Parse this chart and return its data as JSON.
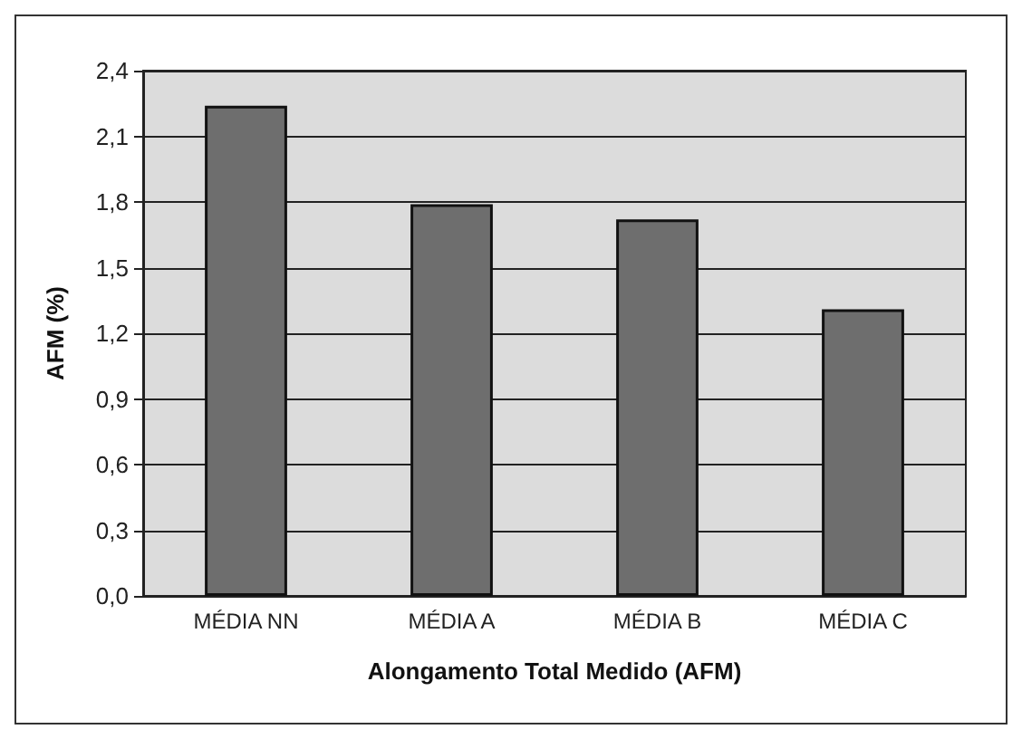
{
  "chart_data": {
    "type": "bar",
    "xlabel": "Alongamento Total Medido (AFM)",
    "ylabel": "AFM (%)",
    "categories": [
      "MÉDIA NN",
      "MÉDIA A",
      "MÉDIA B",
      "MÉDIA C"
    ],
    "values": [
      2.24,
      1.79,
      1.72,
      1.31
    ],
    "color": "#6e6e6e",
    "ylim": [
      0,
      2.4
    ],
    "yticks": [
      {
        "value": 0,
        "label": "0,0"
      },
      {
        "value": 0.3,
        "label": "0,3"
      },
      {
        "value": 0.6,
        "label": "0,6"
      },
      {
        "value": 0.9,
        "label": "0,9"
      },
      {
        "value": 1.2,
        "label": "1,2"
      },
      {
        "value": 1.5,
        "label": "1,5"
      },
      {
        "value": 1.8,
        "label": "1,8"
      },
      {
        "value": 2.1,
        "label": "2,1"
      },
      {
        "value": 2.4,
        "label": "2,4"
      }
    ],
    "grid": "y"
  }
}
